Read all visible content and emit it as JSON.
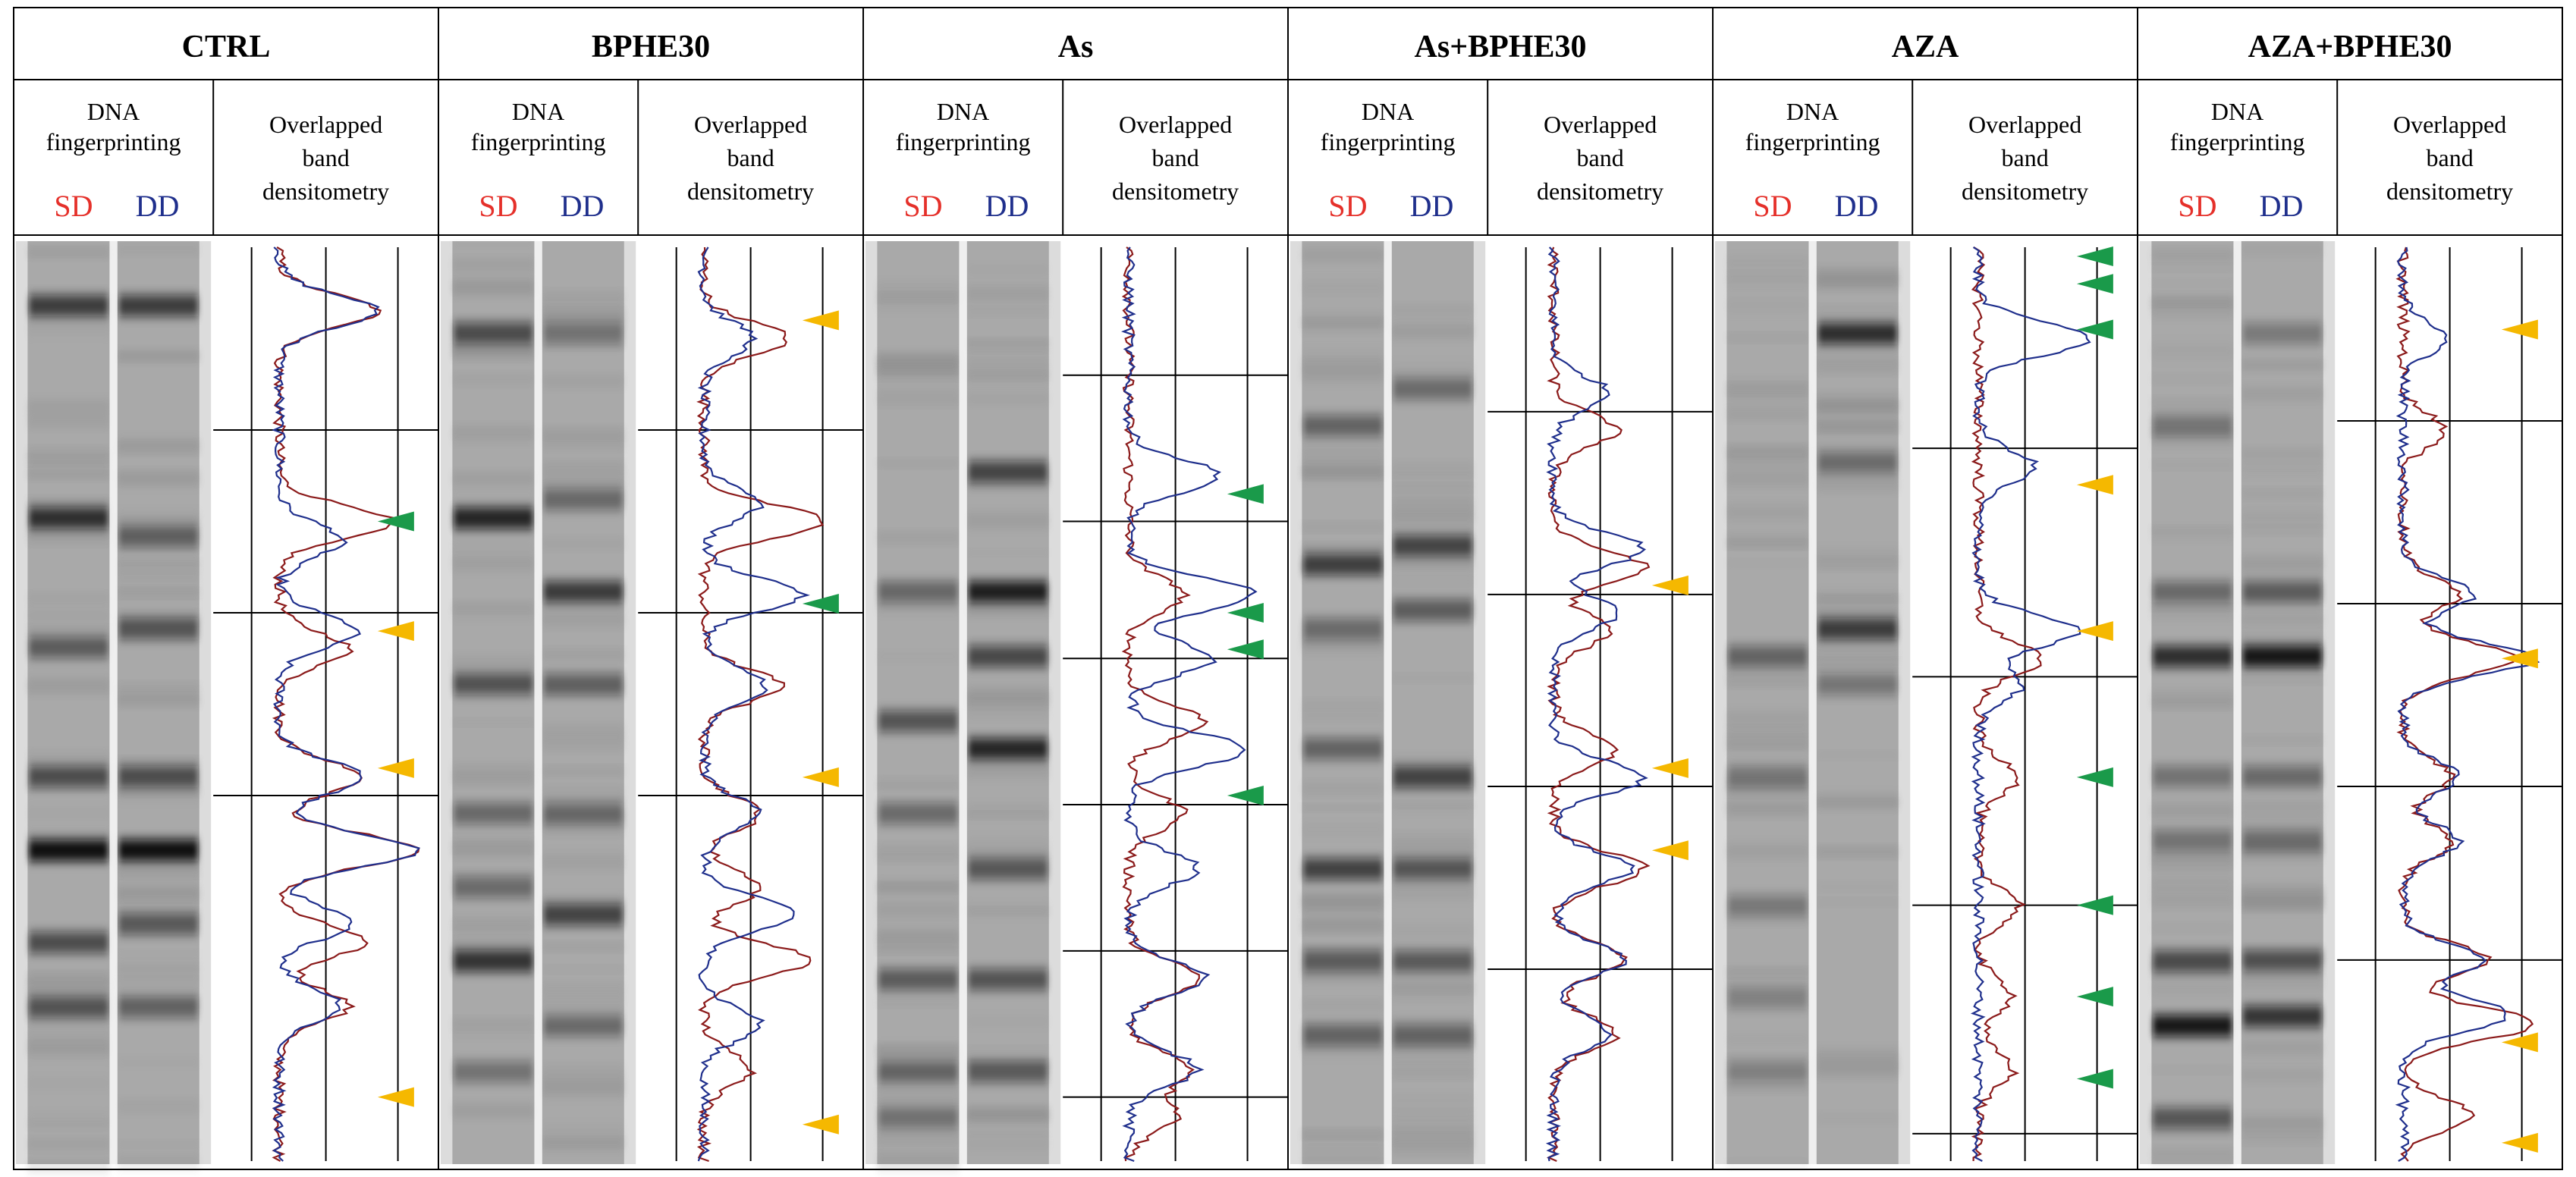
{
  "panels": [
    {
      "title": "CTRL",
      "fingerprint_label": "DNA fingerprinting",
      "densitometry_label": "Overlapped band densitometry",
      "sd_label": "SD",
      "dd_label": "DD",
      "sd_bands": [
        [
          0.07,
          0.7
        ],
        [
          0.3,
          0.8
        ],
        [
          0.44,
          0.5
        ],
        [
          0.58,
          0.6
        ],
        [
          0.66,
          1.0
        ],
        [
          0.76,
          0.6
        ],
        [
          0.83,
          0.5
        ]
      ],
      "dd_bands": [
        [
          0.07,
          0.7
        ],
        [
          0.32,
          0.45
        ],
        [
          0.42,
          0.55
        ],
        [
          0.58,
          0.6
        ],
        [
          0.66,
          1.0
        ],
        [
          0.74,
          0.5
        ],
        [
          0.83,
          0.45
        ]
      ],
      "markers": [
        {
          "color": "green",
          "y": 0.3
        },
        {
          "color": "yellow",
          "y": 0.42
        },
        {
          "color": "yellow",
          "y": 0.57
        },
        {
          "color": "yellow",
          "y": 0.93
        }
      ],
      "hlines": [
        0.2,
        0.4,
        0.6
      ]
    },
    {
      "title": "BPHE30",
      "fingerprint_label": "DNA fingerprinting",
      "densitometry_label": "Overlapped band densitometry",
      "sd_label": "SD",
      "dd_label": "DD",
      "sd_bands": [
        [
          0.1,
          0.6
        ],
        [
          0.3,
          0.85
        ],
        [
          0.48,
          0.55
        ],
        [
          0.62,
          0.4
        ],
        [
          0.7,
          0.4
        ],
        [
          0.78,
          0.75
        ],
        [
          0.9,
          0.35
        ]
      ],
      "dd_bands": [
        [
          0.1,
          0.35
        ],
        [
          0.28,
          0.4
        ],
        [
          0.38,
          0.7
        ],
        [
          0.48,
          0.45
        ],
        [
          0.62,
          0.4
        ],
        [
          0.73,
          0.65
        ],
        [
          0.85,
          0.4
        ]
      ],
      "markers": [
        {
          "color": "yellow",
          "y": 0.08
        },
        {
          "color": "green",
          "y": 0.39
        },
        {
          "color": "yellow",
          "y": 0.58
        },
        {
          "color": "yellow",
          "y": 0.96
        }
      ],
      "hlines": [
        0.2,
        0.4,
        0.6
      ]
    },
    {
      "title": "As",
      "fingerprint_label": "DNA fingerprinting",
      "densitometry_label": "Overlapped band densitometry",
      "sd_label": "SD",
      "dd_label": "DD",
      "sd_bands": [
        [
          0.38,
          0.4
        ],
        [
          0.52,
          0.55
        ],
        [
          0.62,
          0.4
        ],
        [
          0.8,
          0.5
        ],
        [
          0.9,
          0.45
        ],
        [
          0.95,
          0.35
        ]
      ],
      "dd_bands": [
        [
          0.25,
          0.65
        ],
        [
          0.38,
          0.9
        ],
        [
          0.45,
          0.6
        ],
        [
          0.55,
          0.85
        ],
        [
          0.68,
          0.5
        ],
        [
          0.8,
          0.55
        ],
        [
          0.9,
          0.5
        ]
      ],
      "markers": [
        {
          "color": "green",
          "y": 0.27
        },
        {
          "color": "green",
          "y": 0.4
        },
        {
          "color": "green",
          "y": 0.44
        },
        {
          "color": "green",
          "y": 0.6
        }
      ],
      "hlines": [
        0.14,
        0.3,
        0.45,
        0.61,
        0.77,
        0.93
      ]
    },
    {
      "title": "As+BPHE30",
      "fingerprint_label": "DNA fingerprinting",
      "densitometry_label": "Overlapped band densitometry",
      "sd_label": "SD",
      "dd_label": "DD",
      "sd_bands": [
        [
          0.2,
          0.45
        ],
        [
          0.35,
          0.65
        ],
        [
          0.42,
          0.4
        ],
        [
          0.55,
          0.45
        ],
        [
          0.68,
          0.65
        ],
        [
          0.78,
          0.5
        ],
        [
          0.86,
          0.45
        ]
      ],
      "dd_bands": [
        [
          0.16,
          0.4
        ],
        [
          0.33,
          0.65
        ],
        [
          0.4,
          0.45
        ],
        [
          0.58,
          0.65
        ],
        [
          0.68,
          0.55
        ],
        [
          0.78,
          0.5
        ],
        [
          0.86,
          0.4
        ]
      ],
      "markers": [
        {
          "color": "yellow",
          "y": 0.37
        },
        {
          "color": "yellow",
          "y": 0.57
        },
        {
          "color": "yellow",
          "y": 0.66
        }
      ],
      "hlines": [
        0.18,
        0.38,
        0.59,
        0.79
      ]
    },
    {
      "title": "AZA",
      "fingerprint_label": "DNA fingerprinting",
      "densitometry_label": "Overlapped band densitometry",
      "sd_label": "SD",
      "dd_label": "DD",
      "sd_bands": [
        [
          0.45,
          0.45
        ],
        [
          0.58,
          0.3
        ],
        [
          0.72,
          0.3
        ],
        [
          0.82,
          0.25
        ],
        [
          0.9,
          0.25
        ]
      ],
      "dd_bands": [
        [
          0.1,
          0.8
        ],
        [
          0.24,
          0.4
        ],
        [
          0.42,
          0.7
        ],
        [
          0.48,
          0.3
        ]
      ],
      "markers": [
        {
          "color": "green",
          "y": 0.01
        },
        {
          "color": "green",
          "y": 0.04
        },
        {
          "color": "green",
          "y": 0.09
        },
        {
          "color": "yellow",
          "y": 0.26
        },
        {
          "color": "yellow",
          "y": 0.42
        },
        {
          "color": "green",
          "y": 0.58
        },
        {
          "color": "green",
          "y": 0.72
        },
        {
          "color": "green",
          "y": 0.82
        },
        {
          "color": "green",
          "y": 0.91
        }
      ],
      "hlines": [
        0.22,
        0.47,
        0.72,
        0.97
      ]
    },
    {
      "title": "AZA+BPHE30",
      "fingerprint_label": "DNA fingerprinting",
      "densitometry_label": "Overlapped band densitometry",
      "sd_label": "SD",
      "dd_label": "DD",
      "sd_bands": [
        [
          0.2,
          0.3
        ],
        [
          0.38,
          0.4
        ],
        [
          0.45,
          0.8
        ],
        [
          0.58,
          0.35
        ],
        [
          0.65,
          0.35
        ],
        [
          0.78,
          0.6
        ],
        [
          0.85,
          0.95
        ],
        [
          0.95,
          0.5
        ]
      ],
      "dd_bands": [
        [
          0.1,
          0.3
        ],
        [
          0.38,
          0.5
        ],
        [
          0.45,
          0.95
        ],
        [
          0.58,
          0.4
        ],
        [
          0.65,
          0.4
        ],
        [
          0.78,
          0.55
        ],
        [
          0.84,
          0.75
        ]
      ],
      "markers": [
        {
          "color": "yellow",
          "y": 0.09
        },
        {
          "color": "yellow",
          "y": 0.45
        },
        {
          "color": "yellow",
          "y": 0.87
        },
        {
          "color": "yellow",
          "y": 0.98
        }
      ],
      "hlines": [
        0.19,
        0.39,
        0.59,
        0.78
      ]
    }
  ],
  "colors": {
    "sd": "#e5302a",
    "dd": "#1f2f8c",
    "sd_trace": "#8b1a1a",
    "dd_trace": "#1f2f8c",
    "arrow_green": "#1a9a4a",
    "arrow_yellow": "#f5b800"
  }
}
